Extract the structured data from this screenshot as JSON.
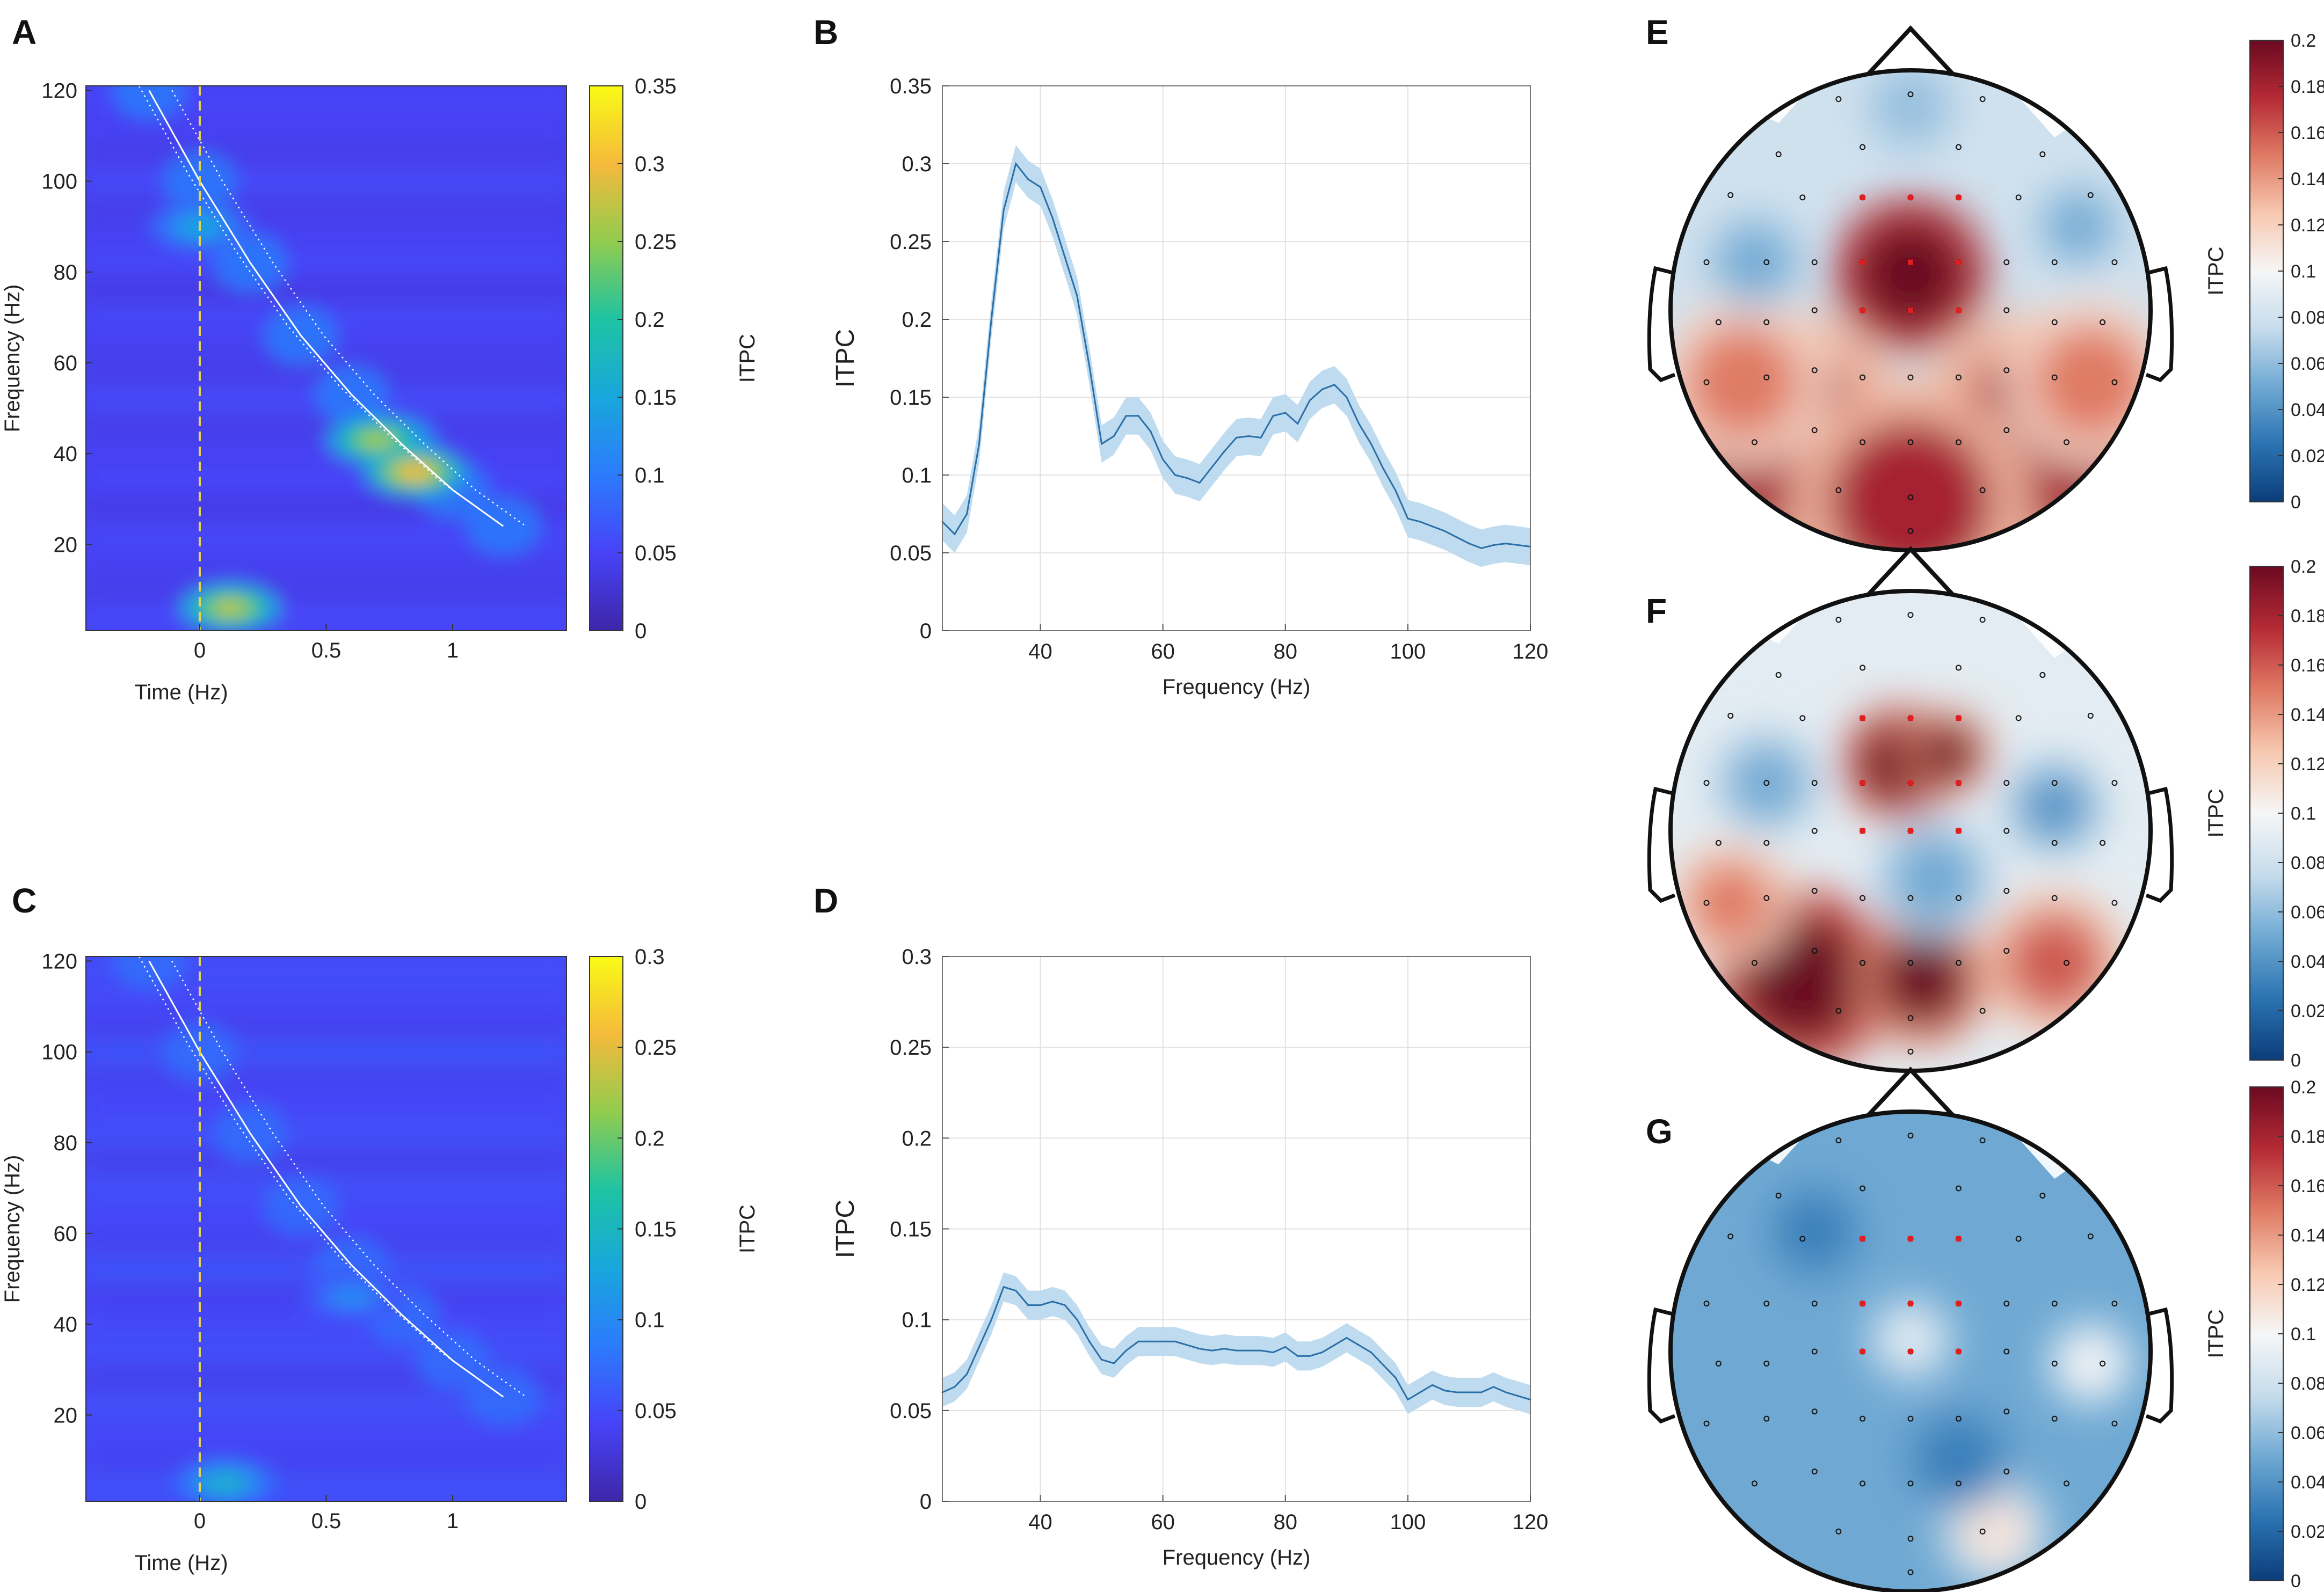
{
  "panels": {
    "A": "A",
    "B": "B",
    "C": "C",
    "D": "D",
    "E": "E",
    "F": "F",
    "G": "G"
  },
  "colors": {
    "line": "#2b6fa8",
    "band": "#bcd9ee",
    "grid": "#e2e2e2",
    "parula": [
      "#3e26a8",
      "#4743f8",
      "#2c7bfc",
      "#18a7dc",
      "#1ec3a3",
      "#91cc4e",
      "#f5ba3b",
      "#f9fb15"
    ],
    "rdbu": [
      "#0b3d7a",
      "#2b73b2",
      "#6fa9d3",
      "#c6dcec",
      "#f6f6f6",
      "#f7c8b0",
      "#df7a64",
      "#b52a35",
      "#6b0a21"
    ]
  },
  "chart_data": [
    {
      "id": "A",
      "type": "heatmap",
      "xlabel": "Time (Hz)",
      "ylabel": "Frequency (Hz)",
      "colorbar_label": "ITPC",
      "xlim": [
        -0.45,
        1.45
      ],
      "ylim": [
        1,
        121
      ],
      "xticks": [
        0,
        0.5,
        1
      ],
      "xticklabels": [
        "0",
        "0.5",
        "1"
      ],
      "yticks": [
        20,
        40,
        60,
        80,
        100,
        120
      ],
      "yticklabels": [
        "20",
        "40",
        "60",
        "80",
        "100",
        "120"
      ],
      "clim": [
        0,
        0.35
      ],
      "cticks": [
        "0",
        "0.05",
        "0.1",
        "0.15",
        "0.2",
        "0.25",
        "0.3",
        "0.35"
      ],
      "chirp_curve": {
        "t": [
          -0.2,
          0,
          0.2,
          0.4,
          0.6,
          0.8,
          1.0,
          1.2
        ],
        "f": [
          120,
          100,
          82,
          66,
          53,
          42,
          32,
          24
        ]
      },
      "hotspots": [
        {
          "t": 0.7,
          "f": 43,
          "value": 0.26
        },
        {
          "t": 0.85,
          "f": 36,
          "value": 0.3
        },
        {
          "t": 0.12,
          "f": 6,
          "value": 0.27
        },
        {
          "t": 0.0,
          "f": 90,
          "value": 0.15
        }
      ]
    },
    {
      "id": "B",
      "type": "line",
      "xlabel": "Frequency (Hz)",
      "ylabel": "ITPC",
      "xlim": [
        24,
        120
      ],
      "ylim": [
        0,
        0.35
      ],
      "xticks": [
        40,
        60,
        80,
        100,
        120
      ],
      "xticklabels": [
        "40",
        "60",
        "80",
        "100",
        "120"
      ],
      "yticks": [
        0,
        0.05,
        0.1,
        0.15,
        0.2,
        0.25,
        0.3,
        0.35
      ],
      "yticklabels": [
        "0",
        "0.05",
        "0.1",
        "0.15",
        "0.2",
        "0.25",
        "0.3",
        "0.35"
      ],
      "x": [
        24,
        26,
        28,
        30,
        32,
        34,
        36,
        38,
        40,
        42,
        44,
        46,
        48,
        50,
        52,
        54,
        56,
        58,
        60,
        62,
        64,
        66,
        68,
        70,
        72,
        74,
        76,
        78,
        80,
        82,
        84,
        86,
        88,
        90,
        92,
        94,
        96,
        98,
        100,
        102,
        104,
        106,
        108,
        110,
        112,
        114,
        116,
        118,
        120
      ],
      "y": [
        0.07,
        0.062,
        0.075,
        0.12,
        0.2,
        0.27,
        0.3,
        0.29,
        0.285,
        0.265,
        0.24,
        0.215,
        0.17,
        0.12,
        0.125,
        0.138,
        0.138,
        0.128,
        0.11,
        0.1,
        0.098,
        0.095,
        0.105,
        0.115,
        0.124,
        0.125,
        0.124,
        0.138,
        0.14,
        0.133,
        0.148,
        0.155,
        0.158,
        0.15,
        0.133,
        0.12,
        0.104,
        0.09,
        0.072,
        0.07,
        0.067,
        0.064,
        0.06,
        0.056,
        0.053,
        0.055,
        0.056,
        0.055,
        0.054
      ],
      "band": 0.012
    },
    {
      "id": "C",
      "type": "heatmap",
      "xlabel": "Time (Hz)",
      "ylabel": "Frequency (Hz)",
      "colorbar_label": "ITPC",
      "xlim": [
        -0.45,
        1.45
      ],
      "ylim": [
        1,
        121
      ],
      "xticks": [
        0,
        0.5,
        1
      ],
      "xticklabels": [
        "0",
        "0.5",
        "1"
      ],
      "yticks": [
        20,
        40,
        60,
        80,
        100,
        120
      ],
      "yticklabels": [
        "20",
        "40",
        "60",
        "80",
        "100",
        "120"
      ],
      "clim": [
        0,
        0.3
      ],
      "cticks": [
        "0",
        "0.05",
        "0.1",
        "0.15",
        "0.2",
        "0.25",
        "0.3"
      ],
      "chirp_curve": {
        "t": [
          -0.2,
          0,
          0.2,
          0.4,
          0.6,
          0.8,
          1.0,
          1.2
        ],
        "f": [
          120,
          100,
          82,
          66,
          53,
          42,
          32,
          24
        ]
      },
      "hotspots": [
        {
          "t": 0.1,
          "f": 5,
          "value": 0.14
        },
        {
          "t": 0.6,
          "f": 46,
          "value": 0.1
        }
      ]
    },
    {
      "id": "D",
      "type": "line",
      "xlabel": "Frequency (Hz)",
      "ylabel": "ITPC",
      "xlim": [
        24,
        120
      ],
      "ylim": [
        0,
        0.3
      ],
      "xticks": [
        40,
        60,
        80,
        100,
        120
      ],
      "xticklabels": [
        "40",
        "60",
        "80",
        "100",
        "120"
      ],
      "yticks": [
        0,
        0.05,
        0.1,
        0.15,
        0.2,
        0.25,
        0.3
      ],
      "yticklabels": [
        "0",
        "0.05",
        "0.1",
        "0.15",
        "0.2",
        "0.25",
        "0.3"
      ],
      "x": [
        24,
        26,
        28,
        30,
        32,
        34,
        36,
        38,
        40,
        42,
        44,
        46,
        48,
        50,
        52,
        54,
        56,
        58,
        60,
        62,
        64,
        66,
        68,
        70,
        72,
        74,
        76,
        78,
        80,
        82,
        84,
        86,
        88,
        90,
        92,
        94,
        96,
        98,
        100,
        102,
        104,
        106,
        108,
        110,
        112,
        114,
        116,
        118,
        120
      ],
      "y": [
        0.06,
        0.063,
        0.07,
        0.085,
        0.1,
        0.118,
        0.116,
        0.108,
        0.108,
        0.11,
        0.108,
        0.1,
        0.088,
        0.078,
        0.076,
        0.083,
        0.088,
        0.088,
        0.088,
        0.088,
        0.086,
        0.084,
        0.083,
        0.084,
        0.083,
        0.083,
        0.083,
        0.082,
        0.085,
        0.08,
        0.08,
        0.082,
        0.086,
        0.09,
        0.086,
        0.082,
        0.075,
        0.068,
        0.056,
        0.06,
        0.064,
        0.061,
        0.06,
        0.06,
        0.06,
        0.063,
        0.06,
        0.058,
        0.056
      ],
      "band": 0.008
    },
    {
      "id": "E",
      "type": "heatmap",
      "subtype": "topography",
      "colorbar_label": "ITPC",
      "clim": [
        0,
        0.2
      ],
      "cticks": [
        "0",
        "0.02",
        "0.04",
        "0.06",
        "0.08",
        "0.1",
        "0.12",
        "0.14",
        "0.16",
        "0.18",
        "0.2"
      ],
      "base_value": 0.08,
      "blobs": [
        {
          "x": 0.0,
          "y": -0.15,
          "r": 0.32,
          "value": 0.26
        },
        {
          "x": -0.55,
          "y": 0.55,
          "r": 0.55,
          "value": 0.18
        },
        {
          "x": 0.55,
          "y": 0.55,
          "r": 0.55,
          "value": 0.18
        },
        {
          "x": 0.0,
          "y": 0.8,
          "r": 0.5,
          "value": 0.18
        },
        {
          "x": -0.7,
          "y": 0.3,
          "r": 0.35,
          "value": 0.15
        },
        {
          "x": 0.75,
          "y": 0.3,
          "r": 0.35,
          "value": 0.15
        },
        {
          "x": -0.65,
          "y": -0.2,
          "r": 0.2,
          "value": 0.05
        },
        {
          "x": 0.7,
          "y": -0.35,
          "r": 0.18,
          "value": 0.05
        },
        {
          "x": 0.0,
          "y": -0.85,
          "r": 0.2,
          "value": 0.06
        }
      ]
    },
    {
      "id": "F",
      "type": "heatmap",
      "subtype": "topography",
      "colorbar_label": "ITPC",
      "clim": [
        0,
        0.2
      ],
      "cticks": [
        "0",
        "0.02",
        "0.04",
        "0.06",
        "0.08",
        "0.1",
        "0.12",
        "0.14",
        "0.16",
        "0.18",
        "0.2"
      ],
      "base_value": 0.09,
      "blobs": [
        {
          "x": -0.05,
          "y": -0.28,
          "r": 0.24,
          "value": 0.22
        },
        {
          "x": 0.15,
          "y": -0.32,
          "r": 0.18,
          "value": 0.2
        },
        {
          "x": -0.45,
          "y": 0.62,
          "r": 0.38,
          "value": 0.23
        },
        {
          "x": 0.05,
          "y": 0.62,
          "r": 0.28,
          "value": 0.2
        },
        {
          "x": -0.75,
          "y": 0.3,
          "r": 0.25,
          "value": 0.15
        },
        {
          "x": 0.6,
          "y": 0.55,
          "r": 0.3,
          "value": 0.16
        },
        {
          "x": -0.6,
          "y": -0.2,
          "r": 0.22,
          "value": 0.05
        },
        {
          "x": 0.6,
          "y": -0.1,
          "r": 0.2,
          "value": 0.04
        },
        {
          "x": 0.1,
          "y": 0.2,
          "r": 0.25,
          "value": 0.05
        }
      ]
    },
    {
      "id": "G",
      "type": "heatmap",
      "subtype": "topography",
      "colorbar_label": "ITPC",
      "clim": [
        0,
        0.2
      ],
      "cticks": [
        "0",
        "0.02",
        "0.04",
        "0.06",
        "0.08",
        "0.1",
        "0.12",
        "0.14",
        "0.16",
        "0.18",
        "0.2"
      ],
      "base_value": 0.05,
      "blobs": [
        {
          "x": 0.0,
          "y": -0.05,
          "r": 0.18,
          "value": 0.09
        },
        {
          "x": 0.35,
          "y": 0.75,
          "r": 0.22,
          "value": 0.11
        },
        {
          "x": 0.75,
          "y": 0.05,
          "r": 0.18,
          "value": 0.1
        },
        {
          "x": -0.4,
          "y": -0.5,
          "r": 0.2,
          "value": 0.03
        },
        {
          "x": 0.2,
          "y": 0.45,
          "r": 0.22,
          "value": 0.03
        }
      ]
    }
  ]
}
